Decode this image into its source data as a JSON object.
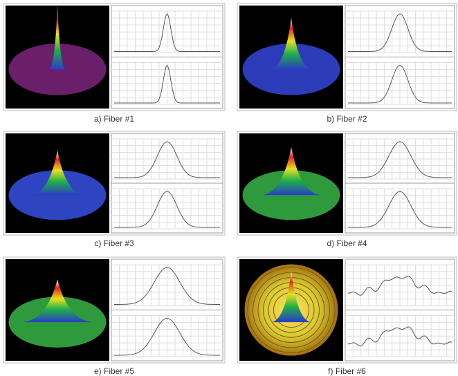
{
  "figure": {
    "panels": [
      {
        "caption": "a) Fiber #1"
      },
      {
        "caption": "b) Fiber #2"
      },
      {
        "caption": "c) Fiber #3"
      },
      {
        "caption": "d) Fiber #4"
      },
      {
        "caption": "e) Fiber #5"
      },
      {
        "caption": "f) Fiber #6"
      }
    ]
  }
}
